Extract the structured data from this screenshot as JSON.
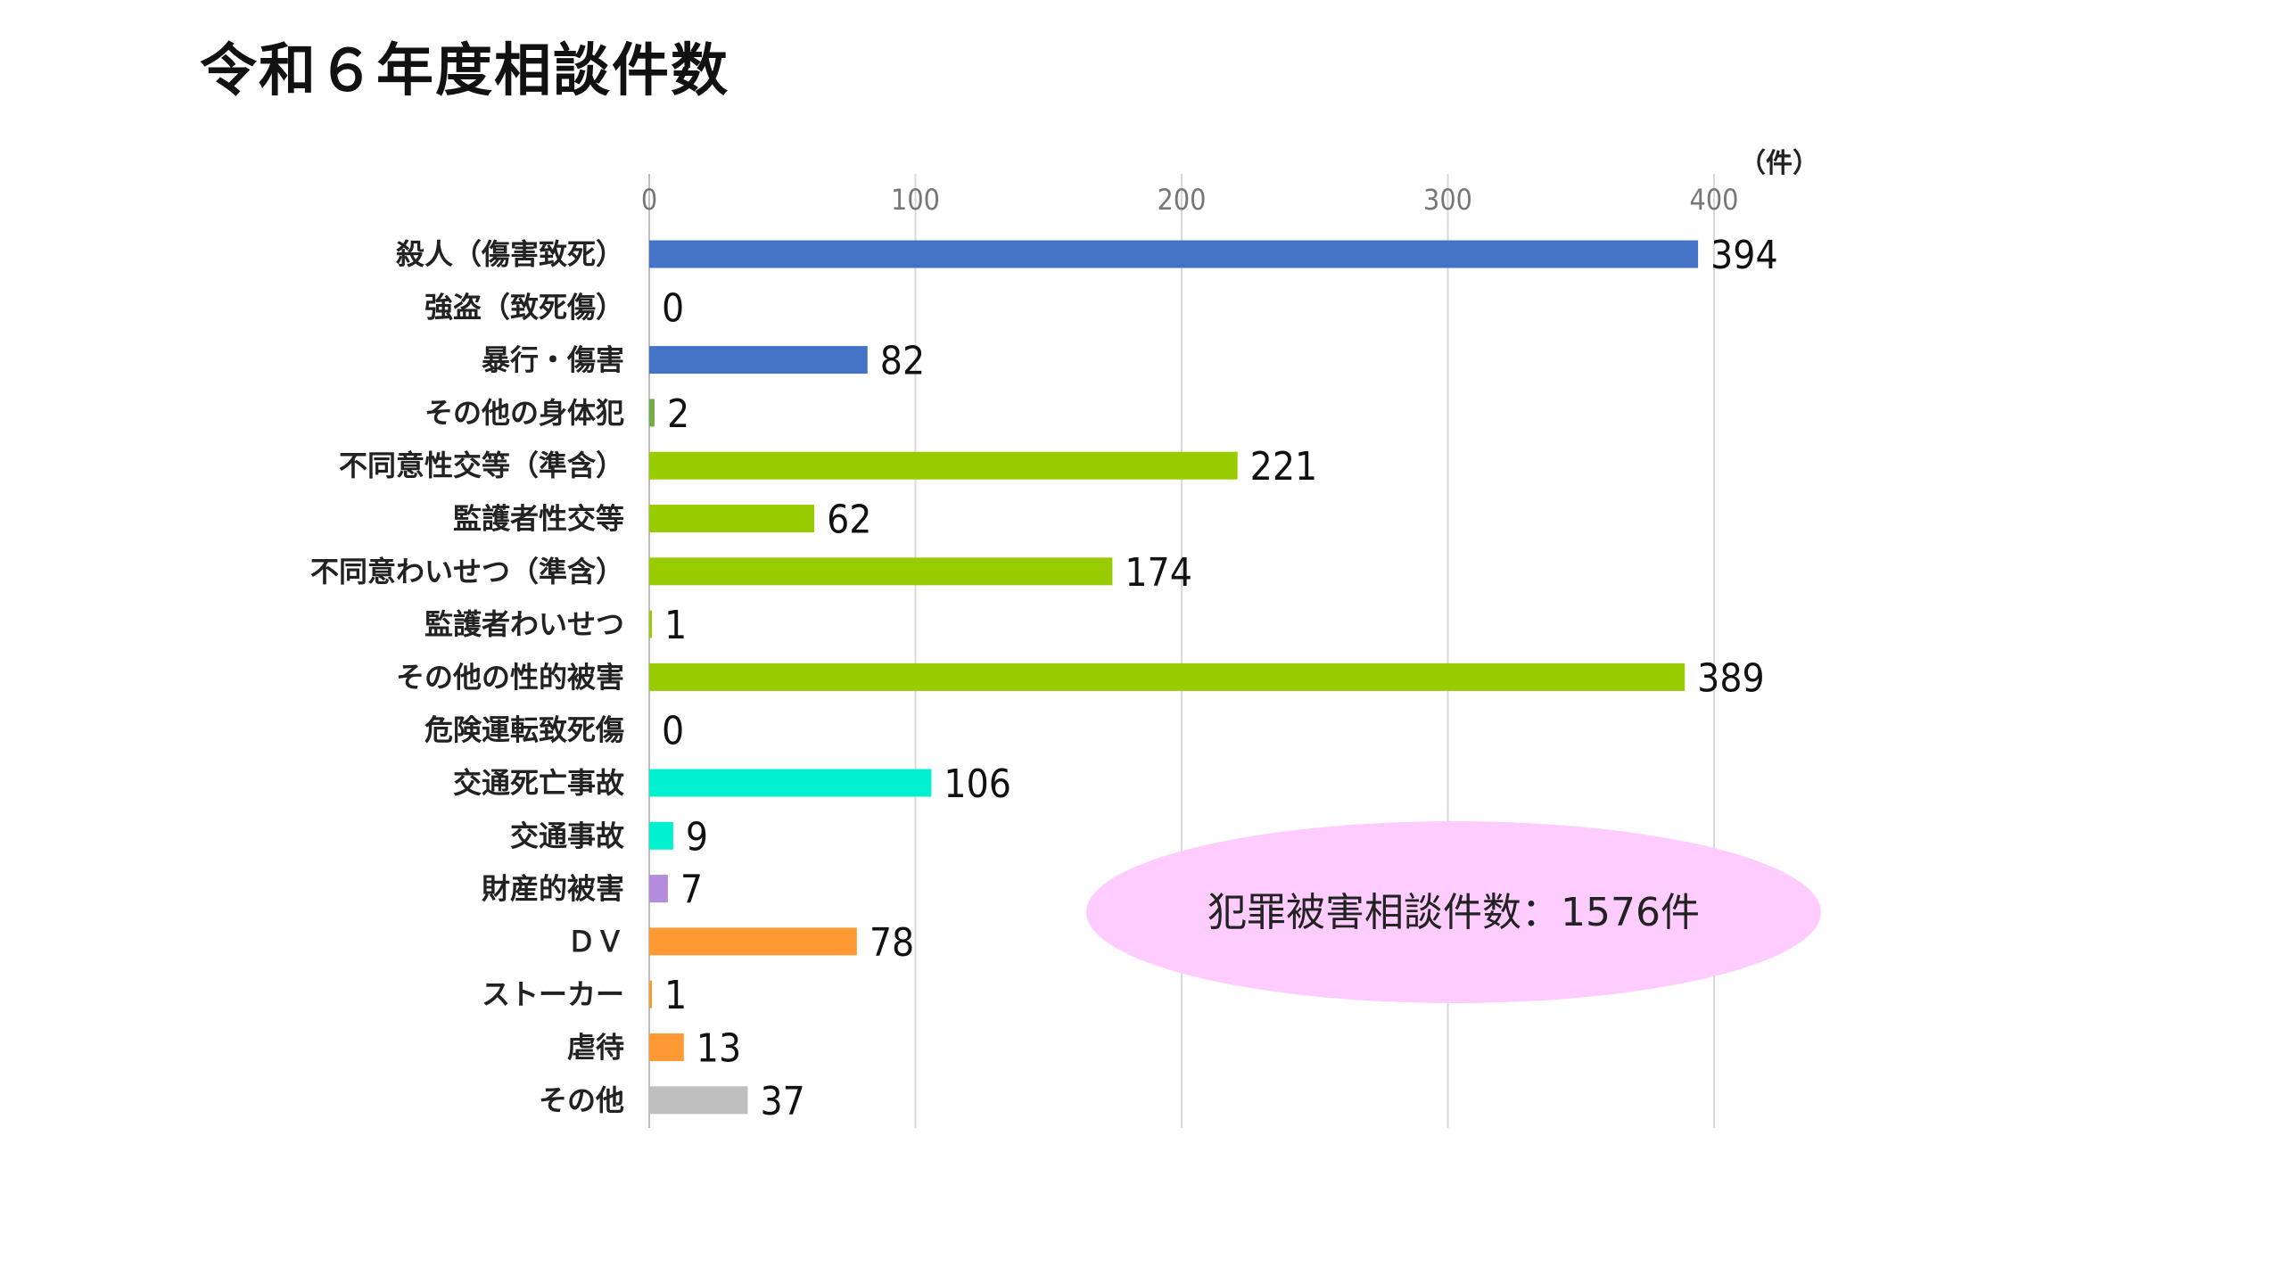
{
  "title": "令和６年度相談件数",
  "chart_data": {
    "type": "bar",
    "orientation": "horizontal",
    "unit_label": "（件）",
    "xlim": [
      0,
      400
    ],
    "ticks": [
      "0",
      "100",
      "200",
      "300",
      "400"
    ],
    "grid": true,
    "categories": [
      "殺人（傷害致死）",
      "強盗（致死傷）",
      "暴行・傷害",
      "その他の身体犯",
      "不同意性交等（準含）",
      "監護者性交等",
      "不同意わいせつ（準含）",
      "監護者わいせつ",
      "その他の性的被害",
      "危険運転致死傷",
      "交通死亡事故",
      "交通事故",
      "財産的被害",
      "ＤＶ",
      "ストーカー",
      "虐待",
      "その他"
    ],
    "values": [
      394,
      0,
      82,
      2,
      221,
      62,
      174,
      1,
      389,
      0,
      106,
      9,
      7,
      78,
      1,
      13,
      37
    ],
    "colors": [
      "#4472C4",
      "#4472C4",
      "#4472C4",
      "#70AD47",
      "#99CC00",
      "#99CC00",
      "#99CC00",
      "#99CC00",
      "#99CC00",
      "#00F0D0",
      "#00F0D0",
      "#00F0D0",
      "#B48CDC",
      "#FF9933",
      "#FF9933",
      "#FF9933",
      "#BFBFBF"
    ]
  },
  "annotation": {
    "text": "犯罪被害相談件数：1576件",
    "fill": "#FFCCFF"
  }
}
